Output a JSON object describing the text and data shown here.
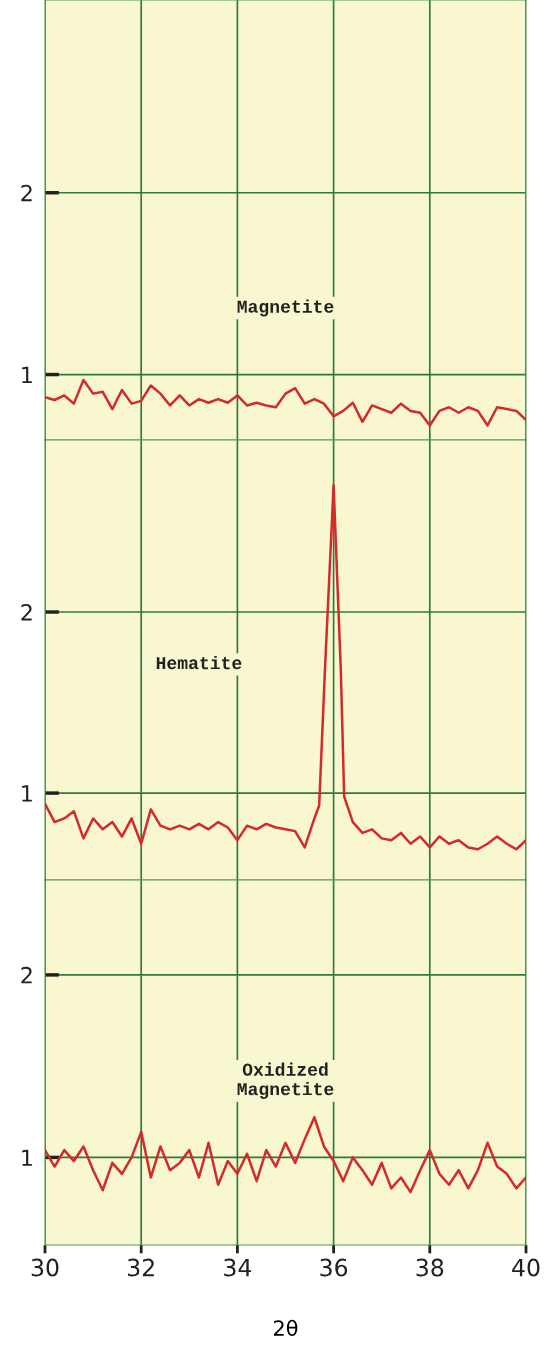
{
  "chart_data": [
    {
      "type": "line",
      "xlim": [
        30,
        40
      ],
      "xticks": [
        30,
        32,
        34,
        36,
        38,
        40
      ],
      "ylim": [
        0.64,
        3.06
      ],
      "yticks": [
        1,
        2
      ],
      "tick_labels": "y",
      "grid": true,
      "x": [
        30.0,
        30.2,
        30.4,
        30.6,
        30.8,
        31.0,
        31.2,
        31.4,
        31.6,
        31.8,
        32.0,
        32.2,
        32.4,
        32.6,
        32.8,
        33.0,
        33.2,
        33.4,
        33.6,
        33.8,
        34.0,
        34.2,
        34.4,
        34.6,
        34.8,
        35.0,
        35.2,
        35.4,
        35.6,
        35.8,
        36.0,
        36.2,
        36.4,
        36.6,
        36.8,
        37.0,
        37.2,
        37.4,
        37.6,
        37.8,
        38.0,
        38.2,
        38.4,
        38.6,
        38.8,
        39.0,
        39.2,
        39.4,
        39.6,
        39.8,
        40.0
      ],
      "series": [
        {
          "name": "Magnetite",
          "color": "#d42a2a",
          "values": [
            0.875,
            0.86,
            0.885,
            0.84,
            0.97,
            0.895,
            0.905,
            0.81,
            0.915,
            0.84,
            0.855,
            0.94,
            0.895,
            0.83,
            0.885,
            0.83,
            0.865,
            0.845,
            0.865,
            0.845,
            0.885,
            0.83,
            0.845,
            0.83,
            0.82,
            0.895,
            0.925,
            0.84,
            0.865,
            0.84,
            0.77,
            0.8,
            0.845,
            0.74,
            0.83,
            0.81,
            0.79,
            0.84,
            0.8,
            0.79,
            0.72,
            0.8,
            0.82,
            0.79,
            0.82,
            0.8,
            0.72,
            0.82,
            0.81,
            0.8,
            0.75
          ]
        }
      ]
    },
    {
      "type": "line",
      "xlim": [
        30,
        40
      ],
      "xticks": [
        30,
        32,
        34,
        36,
        38,
        40
      ],
      "ylim": [
        0.52,
        2.95
      ],
      "yticks": [
        1,
        2
      ],
      "tick_labels": "y",
      "grid": true,
      "x": [
        30.0,
        30.2,
        30.4,
        30.6,
        30.8,
        31.0,
        31.2,
        31.4,
        31.6,
        31.8,
        32.0,
        32.2,
        32.4,
        32.6,
        32.8,
        33.0,
        33.2,
        33.4,
        33.6,
        33.8,
        34.0,
        34.2,
        34.4,
        34.6,
        34.8,
        35.0,
        35.2,
        35.4,
        35.6,
        35.7,
        35.82,
        36.0,
        36.15,
        36.22,
        36.4,
        36.6,
        36.8,
        37.0,
        37.2,
        37.4,
        37.6,
        37.8,
        38.0,
        38.2,
        38.4,
        38.6,
        38.8,
        39.0,
        39.2,
        39.4,
        39.6,
        39.8,
        40.0
      ],
      "series": [
        {
          "name": "Hematite",
          "color": "#d42a2a",
          "values": [
            0.94,
            0.84,
            0.86,
            0.9,
            0.75,
            0.86,
            0.8,
            0.84,
            0.76,
            0.86,
            0.72,
            0.91,
            0.82,
            0.8,
            0.82,
            0.8,
            0.83,
            0.8,
            0.84,
            0.81,
            0.74,
            0.82,
            0.8,
            0.83,
            0.81,
            0.8,
            0.79,
            0.7,
            0.86,
            0.93,
            1.68,
            2.7,
            1.68,
            0.98,
            0.84,
            0.78,
            0.8,
            0.75,
            0.74,
            0.78,
            0.72,
            0.76,
            0.7,
            0.76,
            0.72,
            0.74,
            0.7,
            0.69,
            0.72,
            0.76,
            0.72,
            0.69,
            0.74
          ]
        }
      ]
    },
    {
      "type": "line",
      "xlim": [
        30,
        40
      ],
      "xticks": [
        30,
        32,
        34,
        36,
        38,
        40
      ],
      "ylim": [
        0.52,
        2.52
      ],
      "yticks": [
        1,
        2
      ],
      "xlabel": "2θ",
      "grid": true,
      "x": [
        30.0,
        30.2,
        30.4,
        30.6,
        30.8,
        31.0,
        31.2,
        31.4,
        31.6,
        31.8,
        32.0,
        32.2,
        32.4,
        32.6,
        32.8,
        33.0,
        33.2,
        33.4,
        33.6,
        33.8,
        34.0,
        34.2,
        34.4,
        34.6,
        34.8,
        35.0,
        35.2,
        35.4,
        35.6,
        35.8,
        36.0,
        36.2,
        36.4,
        36.6,
        36.8,
        37.0,
        37.2,
        37.4,
        37.6,
        37.8,
        38.0,
        38.2,
        38.4,
        38.6,
        38.8,
        39.0,
        39.2,
        39.4,
        39.6,
        39.8,
        40.0
      ],
      "series": [
        {
          "name": "Oxidized\nMagnetite",
          "color": "#d42a2a",
          "values": [
            1.04,
            0.95,
            1.04,
            0.98,
            1.06,
            0.93,
            0.82,
            0.97,
            0.91,
            1.0,
            1.14,
            0.89,
            1.06,
            0.93,
            0.97,
            1.04,
            0.89,
            1.08,
            0.85,
            0.98,
            0.91,
            1.02,
            0.87,
            1.04,
            0.95,
            1.08,
            0.97,
            1.1,
            1.22,
            1.06,
            0.98,
            0.87,
            1.0,
            0.93,
            0.85,
            0.97,
            0.83,
            0.89,
            0.81,
            0.93,
            1.04,
            0.91,
            0.85,
            0.93,
            0.83,
            0.93,
            1.08,
            0.95,
            0.91,
            0.83,
            0.89
          ]
        }
      ]
    }
  ]
}
